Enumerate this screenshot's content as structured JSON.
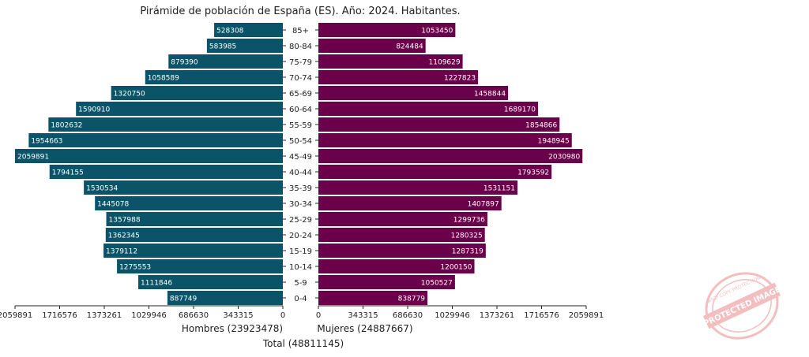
{
  "chart_data": {
    "type": "bar",
    "title": "Pirámide de población de España (ES). Año: 2024. Habitantes.",
    "categories": [
      "0-4",
      "5-9",
      "10-14",
      "15-19",
      "20-24",
      "25-29",
      "30-34",
      "35-39",
      "40-44",
      "45-49",
      "50-54",
      "55-59",
      "60-64",
      "65-69",
      "70-74",
      "75-79",
      "80-84",
      "85+"
    ],
    "series": [
      {
        "name": "Hombres (23923478)",
        "side": "left",
        "values": [
          887749,
          1111846,
          1275553,
          1379112,
          1362345,
          1357988,
          1445078,
          1530534,
          1794155,
          2059891,
          1954663,
          1802632,
          1590910,
          1320750,
          1058589,
          879390,
          583985,
          528308
        ]
      },
      {
        "name": "Mujeres (24887667)",
        "side": "right",
        "values": [
          838779,
          1050527,
          1200150,
          1287319,
          1280325,
          1299736,
          1407897,
          1531151,
          1793592,
          2030980,
          1948945,
          1854866,
          1689170,
          1458844,
          1227823,
          1109629,
          824484,
          1053450
        ]
      }
    ],
    "xlim": [
      0,
      2059891
    ],
    "ticks_left": [
      "2059891",
      "1716576",
      "1373261",
      "1029946",
      "686630",
      "343315",
      "0"
    ],
    "ticks_right": [
      "0",
      "343315",
      "686630",
      "1029946",
      "1373261",
      "1716576",
      "2059891"
    ],
    "xlabel_total": "Total (48811145)",
    "colors": {
      "male": "#0b5369",
      "female": "#6a0049",
      "label": "#ffffff"
    }
  },
  "watermark": {
    "text": "PROTECTED IMAGE",
    "small_text": "ANTI COPY PROTECTION"
  }
}
